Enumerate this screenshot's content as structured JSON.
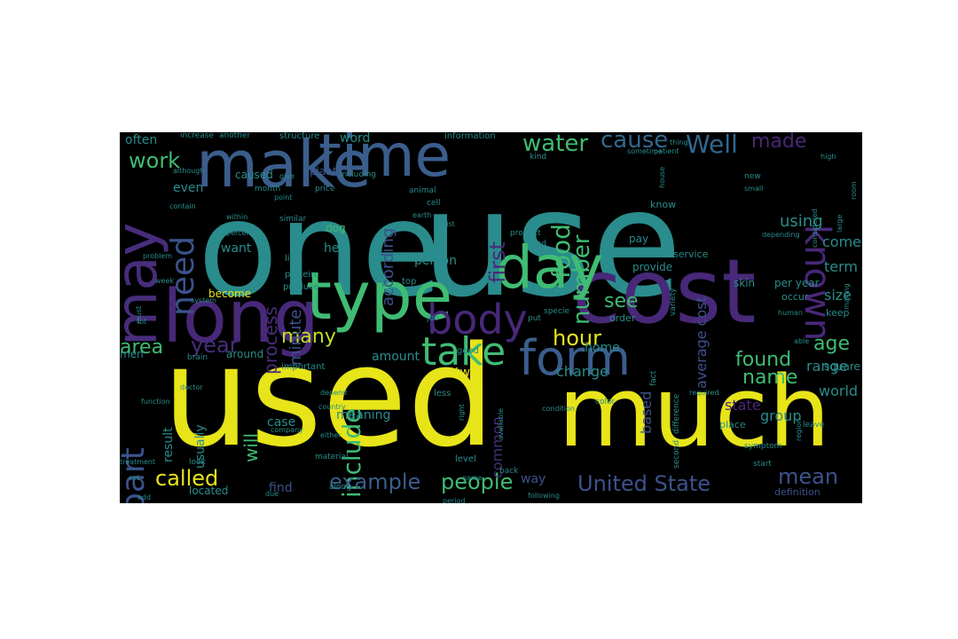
{
  "wordcloud": {
    "background": "#000000",
    "words": [
      {
        "text": "one",
        "color": "#2a8c8c"
      },
      {
        "text": "use",
        "color": "#2a8c8c"
      },
      {
        "text": "used",
        "color": "#e7e419"
      },
      {
        "text": "much",
        "color": "#e7e419"
      },
      {
        "text": "cost",
        "color": "#482878"
      },
      {
        "text": "make",
        "color": "#3a5e8c"
      },
      {
        "text": "time",
        "color": "#3a5e8c"
      },
      {
        "text": "long",
        "color": "#482878"
      },
      {
        "text": "type",
        "color": "#3fbc73"
      },
      {
        "text": "may",
        "color": "#472d7b"
      },
      {
        "text": "day",
        "color": "#3fbc73"
      },
      {
        "text": "form",
        "color": "#3a5e8c"
      },
      {
        "text": "body",
        "color": "#482878"
      },
      {
        "text": "take",
        "color": "#3fbc73"
      },
      {
        "text": "known",
        "color": "#482878"
      },
      {
        "text": "need",
        "color": "#3b528b"
      },
      {
        "text": "part",
        "color": "#3b528b"
      },
      {
        "text": "include",
        "color": "#3fbc73"
      },
      {
        "text": "food",
        "color": "#3fbc73"
      },
      {
        "text": "first",
        "color": "#482878"
      },
      {
        "text": "number",
        "color": "#3fbc73"
      },
      {
        "text": "water",
        "color": "#3fbc73"
      },
      {
        "text": "cause",
        "color": "#31688e"
      },
      {
        "text": "Well",
        "color": "#31688e"
      },
      {
        "text": "made",
        "color": "#482878"
      },
      {
        "text": "work",
        "color": "#3fbc73"
      },
      {
        "text": "many",
        "color": "#c2df23"
      },
      {
        "text": "year",
        "color": "#472d7b"
      },
      {
        "text": "area",
        "color": "#3fbc73"
      },
      {
        "text": "will",
        "color": "#3fbc73"
      },
      {
        "text": "called",
        "color": "#e7e419"
      },
      {
        "text": "example",
        "color": "#3a5e8c"
      },
      {
        "text": "people",
        "color": "#3fbc73"
      },
      {
        "text": "United State",
        "color": "#3b528b"
      },
      {
        "text": "mean",
        "color": "#3b528b"
      },
      {
        "text": "found",
        "color": "#3fbc73"
      },
      {
        "text": "age",
        "color": "#3fbc73"
      },
      {
        "text": "name",
        "color": "#3fbc73"
      },
      {
        "text": "see",
        "color": "#3fbc73"
      },
      {
        "text": "process",
        "color": "#472d7b"
      },
      {
        "text": "minute",
        "color": "#3b528b"
      },
      {
        "text": "according",
        "color": "#3b528b"
      },
      {
        "text": "average cost",
        "color": "#3b528b"
      },
      {
        "text": "using",
        "color": "#2a8c8c"
      },
      {
        "text": "come",
        "color": "#2a8c8c"
      },
      {
        "text": "term",
        "color": "#2a8c8c"
      },
      {
        "text": "size",
        "color": "#2a8c8c"
      },
      {
        "text": "range",
        "color": "#2a8c8c"
      },
      {
        "text": "world",
        "color": "#2a8c8c"
      },
      {
        "text": "group",
        "color": "#2a8c8c"
      },
      {
        "text": "state",
        "color": "#482878"
      },
      {
        "text": "based",
        "color": "#3b528b"
      },
      {
        "text": "common",
        "color": "#472d7b"
      },
      {
        "text": "hour",
        "color": "#e7e419"
      },
      {
        "text": "change",
        "color": "#2a8c8c"
      },
      {
        "text": "often",
        "color": "#2a8c8c"
      },
      {
        "text": "word",
        "color": "#2a8c8c"
      },
      {
        "text": "even",
        "color": "#2a8c8c"
      },
      {
        "text": "want",
        "color": "#2a8c8c"
      },
      {
        "text": "help",
        "color": "#2a8c8c"
      },
      {
        "text": "person",
        "color": "#2a8c8c"
      },
      {
        "text": "amount",
        "color": "#2a8c8c"
      },
      {
        "text": "two",
        "color": "#e7e419"
      },
      {
        "text": "case",
        "color": "#2a8c8c"
      },
      {
        "text": "find",
        "color": "#3b528b"
      },
      {
        "text": "usually",
        "color": "#2a8c8c"
      },
      {
        "text": "result",
        "color": "#2a8c8c"
      },
      {
        "text": "located",
        "color": "#2a8c8c"
      },
      {
        "text": "way",
        "color": "#3b528b"
      },
      {
        "text": "provide",
        "color": "#2a8c8c"
      },
      {
        "text": "skin",
        "color": "#2a8c8c"
      },
      {
        "text": "per year",
        "color": "#2a8c8c"
      },
      {
        "text": "square foot",
        "color": "#2a8c8c"
      },
      {
        "text": "home",
        "color": "#2a8c8c"
      },
      {
        "text": "meaning",
        "color": "#2a8c8c"
      },
      {
        "text": "caused",
        "color": "#2a8c8c"
      },
      {
        "text": "plant",
        "color": "#3b528b"
      },
      {
        "text": "know",
        "color": "#2a8c8c"
      },
      {
        "text": "pay",
        "color": "#2a8c8c"
      },
      {
        "text": "service",
        "color": "#2a8c8c"
      },
      {
        "text": "around",
        "color": "#2a8c8c"
      },
      {
        "text": "become",
        "color": "#e7e419"
      },
      {
        "text": "important",
        "color": "#2a8c8c"
      },
      {
        "text": "top",
        "color": "#2a8c8c"
      },
      {
        "text": "occur",
        "color": "#2a8c8c"
      },
      {
        "text": "keep",
        "color": "#2a8c8c"
      },
      {
        "text": "order",
        "color": "#2a8c8c"
      },
      {
        "text": "place",
        "color": "#2a8c8c"
      },
      {
        "text": "definition",
        "color": "#3b528b"
      },
      {
        "text": "good",
        "color": "#2a8c8c"
      },
      {
        "text": "less",
        "color": "#2a8c8c"
      },
      {
        "text": "level",
        "color": "#2a8c8c"
      },
      {
        "text": "structure",
        "color": "#2a8c8c"
      },
      {
        "text": "information",
        "color": "#2a8c8c"
      },
      {
        "text": "increase",
        "color": "#2a8c8c"
      },
      {
        "text": "another",
        "color": "#2a8c8c"
      },
      {
        "text": "month",
        "color": "#2a8c8c"
      },
      {
        "text": "price",
        "color": "#2a8c8c"
      },
      {
        "text": "animal",
        "color": "#2a8c8c"
      },
      {
        "text": "cell",
        "color": "#2a8c8c"
      },
      {
        "text": "dog",
        "color": "#3fbc73"
      },
      {
        "text": "similar",
        "color": "#2a8c8c"
      },
      {
        "text": "live",
        "color": "#2a8c8c"
      },
      {
        "text": "protein",
        "color": "#2a8c8c"
      },
      {
        "text": "produce",
        "color": "#2a8c8c"
      },
      {
        "text": "job",
        "color": "#2a8c8c"
      },
      {
        "text": "specie",
        "color": "#2a8c8c"
      },
      {
        "text": "put",
        "color": "#2a8c8c"
      },
      {
        "text": "system",
        "color": "#2a8c8c"
      },
      {
        "text": "brain",
        "color": "#2a8c8c"
      },
      {
        "text": "week",
        "color": "#2a8c8c"
      },
      {
        "text": "product",
        "color": "#2a8c8c"
      },
      {
        "text": "end",
        "color": "#2a8c8c"
      },
      {
        "text": "human",
        "color": "#2a8c8c"
      },
      {
        "text": "able",
        "color": "#2a8c8c"
      },
      {
        "text": "variety",
        "color": "#2a8c8c"
      },
      {
        "text": "color",
        "color": "#2a8c8c"
      },
      {
        "text": "condition",
        "color": "#2a8c8c"
      },
      {
        "text": "available",
        "color": "#2a8c8c"
      },
      {
        "text": "right",
        "color": "#2a8c8c"
      },
      {
        "text": "fact",
        "color": "#2a8c8c"
      },
      {
        "text": "difference",
        "color": "#2a8c8c"
      },
      {
        "text": "symptom",
        "color": "#2a8c8c"
      },
      {
        "text": "start",
        "color": "#2a8c8c"
      },
      {
        "text": "leave",
        "color": "#2a8c8c"
      },
      {
        "text": "along",
        "color": "#2a8c8c"
      },
      {
        "text": "back",
        "color": "#2a8c8c"
      },
      {
        "text": "material",
        "color": "#2a8c8c"
      },
      {
        "text": "look",
        "color": "#2a8c8c"
      },
      {
        "text": "treatment",
        "color": "#2a8c8c"
      },
      {
        "text": "set",
        "color": "#2a8c8c"
      },
      {
        "text": "add",
        "color": "#2a8c8c"
      },
      {
        "text": "due",
        "color": "#2a8c8c"
      },
      {
        "text": "depend",
        "color": "#2a8c8c"
      },
      {
        "text": "region",
        "color": "#2a8c8c"
      },
      {
        "text": "company",
        "color": "#2a8c8c"
      },
      {
        "text": "either",
        "color": "#2a8c8c"
      },
      {
        "text": "country",
        "color": "#2a8c8c"
      },
      {
        "text": "within",
        "color": "#2a8c8c"
      },
      {
        "text": "percent",
        "color": "#2a8c8c"
      },
      {
        "text": "problem",
        "color": "#2a8c8c"
      },
      {
        "text": "thing",
        "color": "#2a8c8c"
      },
      {
        "text": "although",
        "color": "#2a8c8c"
      },
      {
        "text": "new",
        "color": "#2a8c8c"
      },
      {
        "text": "small",
        "color": "#2a8c8c"
      },
      {
        "text": "sometime",
        "color": "#2a8c8c"
      },
      {
        "text": "patient",
        "color": "#2a8c8c"
      },
      {
        "text": "period",
        "color": "#2a8c8c"
      },
      {
        "text": "following",
        "color": "#2a8c8c"
      },
      {
        "text": "second",
        "color": "#2a8c8c"
      },
      {
        "text": "room",
        "color": "#2a8c8c"
      },
      {
        "text": "must",
        "color": "#2a8c8c"
      },
      {
        "text": "large",
        "color": "#2a8c8c"
      },
      {
        "text": "high",
        "color": "#2a8c8c"
      },
      {
        "text": "kind",
        "color": "#2a8c8c"
      },
      {
        "text": "list",
        "color": "#2a8c8c"
      },
      {
        "text": "contain",
        "color": "#2a8c8c"
      },
      {
        "text": "including",
        "color": "#2a8c8c"
      },
      {
        "text": "function",
        "color": "#2a8c8c"
      },
      {
        "text": "game",
        "color": "#2a8c8c"
      },
      {
        "text": "doctor",
        "color": "#2a8c8c"
      },
      {
        "text": "considered",
        "color": "#2a8c8c"
      },
      {
        "text": "depending",
        "color": "#2a8c8c"
      },
      {
        "text": "required",
        "color": "#2a8c8c"
      },
      {
        "text": "making",
        "color": "#2a8c8c"
      },
      {
        "text": "earth",
        "color": "#2a8c8c"
      },
      {
        "text": "give",
        "color": "#2a8c8c"
      },
      {
        "text": "house",
        "color": "#2a8c8c"
      },
      {
        "text": "point",
        "color": "#2a8c8c"
      },
      {
        "text": "lot",
        "color": "#2a8c8c"
      },
      {
        "text": "men",
        "color": "#2a8c8c"
      },
      {
        "text": "us",
        "color": "#2a8c8c"
      }
    ]
  }
}
